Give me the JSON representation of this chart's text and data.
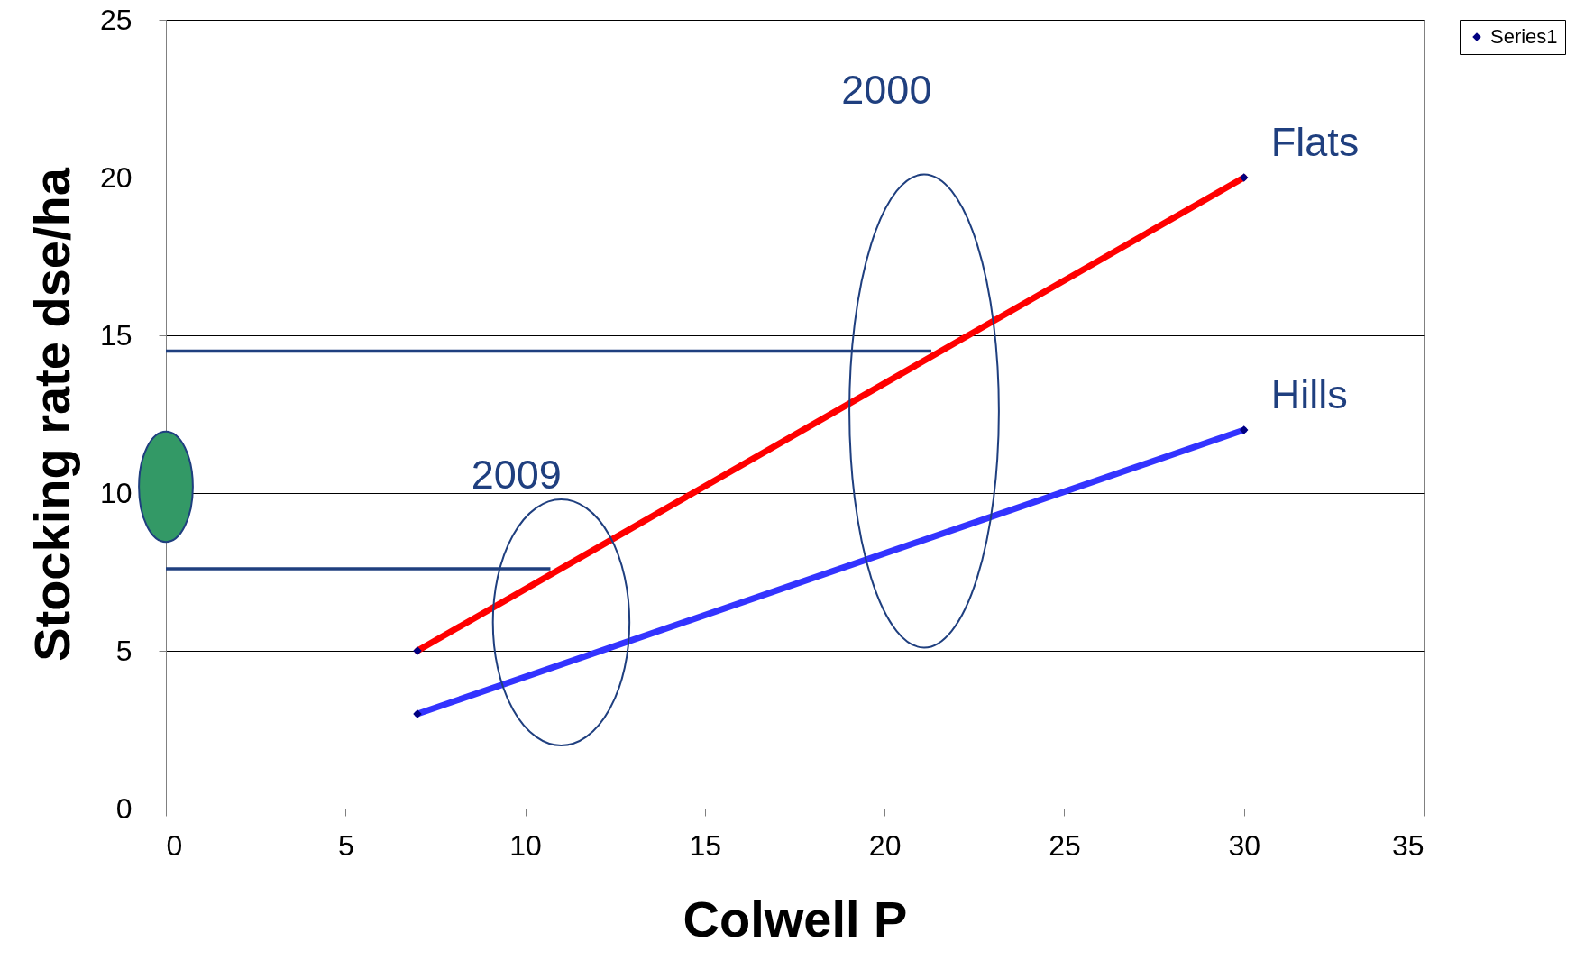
{
  "chart_data": {
    "type": "scatter",
    "xlabel": "Colwell P",
    "ylabel": "Stocking rate dse/ha",
    "xlim": [
      0,
      35
    ],
    "xticks": [
      0,
      5,
      10,
      15,
      20,
      25,
      30,
      35
    ],
    "ylim": [
      0,
      25
    ],
    "yticks": [
      0,
      5,
      10,
      15,
      20,
      25
    ],
    "grid": "y",
    "legend": "right",
    "series": [
      {
        "type": "line",
        "name": "Flats",
        "color": "#ff0000",
        "x": [
          7,
          30
        ],
        "values": [
          5,
          20
        ]
      },
      {
        "type": "line",
        "name": "Hills",
        "color": "#3333ff",
        "x": [
          7,
          30
        ],
        "values": [
          3,
          12
        ]
      },
      {
        "type": "line",
        "color": "#1f3f7f",
        "x": [
          0,
          21.3
        ],
        "values": [
          14.5,
          14.5
        ]
      },
      {
        "type": "line",
        "color": "#1f3f7f",
        "x": [
          0,
          10.7
        ],
        "values": [
          7.6,
          7.6
        ]
      },
      {
        "name": "Series1",
        "marker": "diamond",
        "color": "#000080",
        "x": [
          7,
          30,
          7,
          30
        ],
        "values": [
          5,
          20,
          3,
          12
        ]
      }
    ],
    "annotations": [
      "2009",
      "2000"
    ]
  }
}
